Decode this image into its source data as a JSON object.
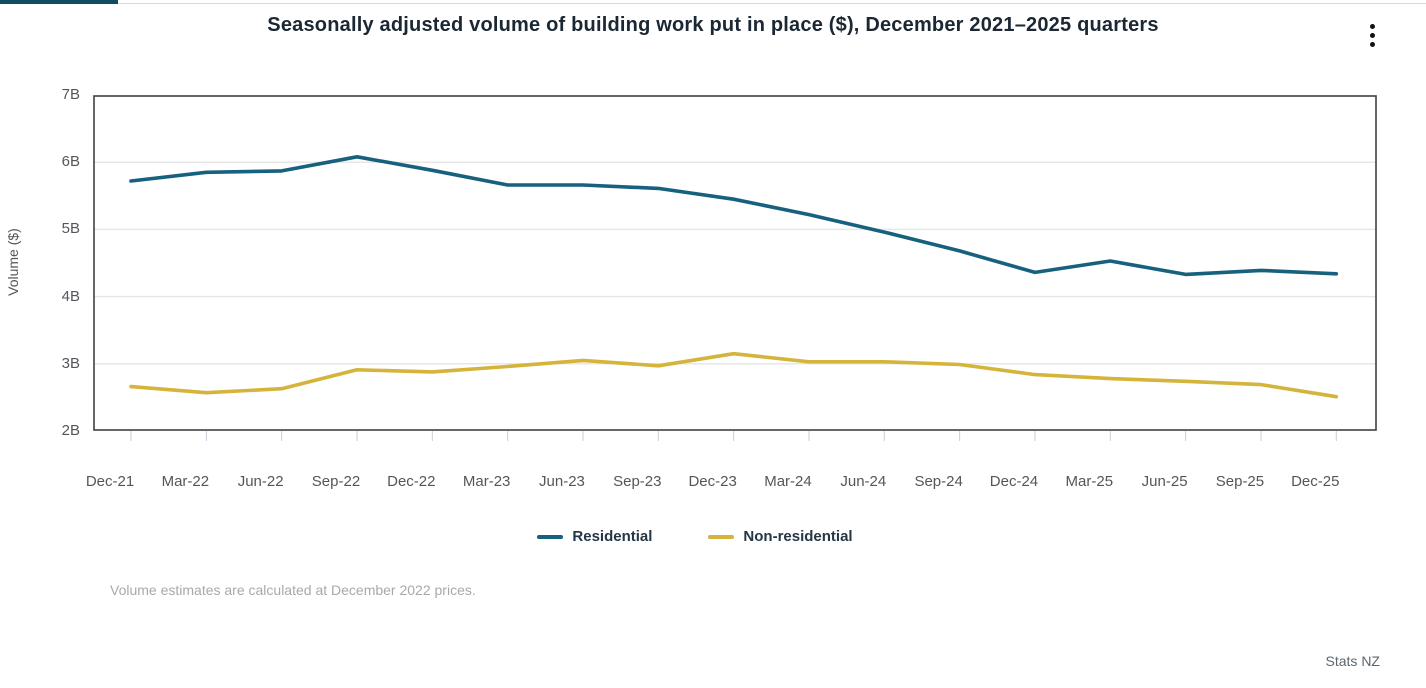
{
  "header": {
    "title": "Seasonally adjusted volume of building work put in place ($), December 2021–2025 quarters"
  },
  "chart_data": {
    "type": "line",
    "title": "Seasonally adjusted volume of building work put in place ($), December 2021–2025 quarters",
    "xlabel": "",
    "ylabel": "Volume ($)",
    "ylim": [
      2,
      7
    ],
    "yticks": [
      {
        "value": 7,
        "label": "7B"
      },
      {
        "value": 6,
        "label": "6B"
      },
      {
        "value": 5,
        "label": "5B"
      },
      {
        "value": 4,
        "label": "4B"
      },
      {
        "value": 3,
        "label": "3B"
      },
      {
        "value": 2,
        "label": "2B"
      }
    ],
    "grid": "horizontal",
    "legend_position": "bottom",
    "categories": [
      "Dec-21",
      "Mar-22",
      "Jun-22",
      "Sep-22",
      "Dec-22",
      "Mar-23",
      "Jun-23",
      "Sep-23",
      "Dec-23",
      "Mar-24",
      "Jun-24",
      "Sep-24",
      "Dec-24",
      "Mar-25",
      "Jun-25",
      "Sep-25",
      "Dec-25"
    ],
    "series": [
      {
        "name": "Residential",
        "color": "#17617E",
        "values": [
          5.72,
          5.85,
          5.87,
          6.08,
          5.88,
          5.66,
          5.66,
          5.61,
          5.45,
          5.22,
          4.96,
          4.68,
          4.36,
          4.53,
          4.33,
          4.39,
          4.34
        ]
      },
      {
        "name": "Non-residential",
        "color": "#D5B43C",
        "values": [
          2.66,
          2.57,
          2.63,
          2.91,
          2.88,
          2.96,
          3.05,
          2.97,
          3.15,
          3.03,
          3.03,
          2.99,
          2.84,
          2.78,
          2.74,
          2.69,
          2.51
        ]
      }
    ]
  },
  "footnote": "Volume estimates are calculated at December 2022 prices.",
  "attribution": "Stats NZ",
  "colors": {
    "accent_bar": "#0f4b63",
    "plot_border": "#404040",
    "gridline": "#e7e7e7",
    "tick": "#c7cfda",
    "axis_text": "#54565b",
    "title_text": "#1b2733"
  }
}
